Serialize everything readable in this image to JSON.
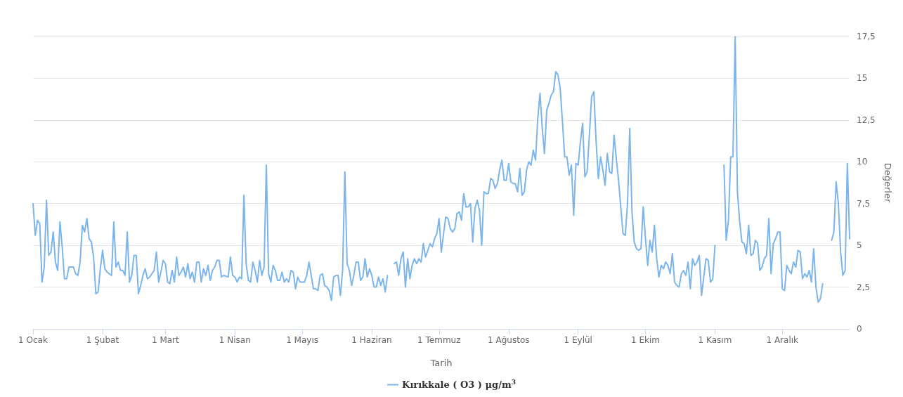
{
  "chart_data": {
    "type": "line",
    "xlabel": "Tarih",
    "ylabel": "Değerler",
    "legend": "bottom",
    "grid": "y",
    "marker": "none",
    "line_style": "solid",
    "xlim": [
      "--01-01",
      "--12-31"
    ],
    "xticks": [
      {
        "value": "--01-01",
        "label": "1 Ocak"
      },
      {
        "value": "--02-01",
        "label": "1 Şubat"
      },
      {
        "value": "--03-01",
        "label": "1 Mart"
      },
      {
        "value": "--04-01",
        "label": "1 Nisan"
      },
      {
        "value": "--05-01",
        "label": "1 Mayıs"
      },
      {
        "value": "--06-01",
        "label": "1 Haziran"
      },
      {
        "value": "--07-01",
        "label": "1 Temmuz"
      },
      {
        "value": "--08-01",
        "label": "1 Ağustos"
      },
      {
        "value": "--09-01",
        "label": "1 Eylül"
      },
      {
        "value": "--10-01",
        "label": "1 Ekim"
      },
      {
        "value": "--11-01",
        "label": "1 Kasım"
      },
      {
        "value": "--12-01",
        "label": "1 Aralık"
      }
    ],
    "ylim": [
      0,
      17.5
    ],
    "yticks": [
      0,
      {
        "value": 2.5,
        "label": "2,5"
      },
      5,
      {
        "value": 7.5,
        "label": "7,5"
      },
      10,
      {
        "value": 12.5,
        "label": "12,5"
      },
      15,
      {
        "value": 17.5,
        "label": "17,5"
      }
    ],
    "x": [
      "--01-01",
      "--01-02",
      "--01-03",
      "--01-04",
      "--01-05",
      "--01-06",
      "--01-07",
      "--01-08",
      "--01-09",
      "--01-10",
      "--01-11",
      "--01-12",
      "--01-13",
      "--01-14",
      "--01-15",
      "--01-16",
      "--01-17",
      "--01-19",
      "--01-20",
      "--01-21",
      "--01-22",
      "--01-23",
      "--01-24",
      "--01-25",
      "--01-26",
      "--01-27",
      "--01-28",
      "--01-29",
      "--01-30",
      "--01-31",
      "--02-01",
      "--02-02",
      "--02-03",
      "--02-05",
      "--02-06",
      "--02-07",
      "--02-08",
      "--02-09",
      "--02-10",
      "--02-11",
      "--02-12",
      "--02-13",
      "--02-14",
      "--02-15",
      "--02-16",
      "--02-17",
      "--02-18",
      "--02-19",
      "--02-20",
      "--02-21",
      "--02-22",
      "--02-24",
      "--02-25",
      "--02-26",
      "--02-27",
      "--02-28",
      "--03-01",
      "--03-02",
      "--03-03",
      "--03-04",
      "--03-05",
      "--03-06",
      "--03-07",
      "--03-08",
      "--03-09",
      "--03-10",
      "--03-11",
      "--03-12",
      "--03-13",
      "--03-14",
      "--03-15",
      "--03-16",
      "--03-17",
      "--03-18",
      "--03-19",
      "--03-20",
      "--03-21",
      "--03-22",
      "--03-23",
      "--03-24",
      "--03-25",
      "--03-26",
      "--03-27",
      "--03-29",
      "--03-30",
      "--03-31",
      "--04-01",
      "--04-02",
      "--04-03",
      "--04-04",
      "--04-05",
      "--04-06",
      "--04-07",
      "--04-08",
      "--04-09",
      "--04-10",
      "--04-11",
      "--04-12",
      "--04-13",
      "--04-14",
      "--04-15",
      "--04-16",
      "--04-17",
      "--04-18",
      "--04-19",
      "--04-20",
      "--04-21",
      "--04-22",
      "--04-23",
      "--04-24",
      "--04-25",
      "--04-26",
      "--04-27",
      "--04-28",
      "--04-29",
      "--04-30",
      "--05-01",
      "--05-02",
      "--05-03",
      "--05-04",
      "--05-05",
      "--05-06",
      "--05-07",
      "--05-08",
      "--05-09",
      "--05-10",
      "--05-11",
      "--05-12",
      "--05-13",
      "--05-14",
      "--05-15",
      "--05-16",
      "--05-17",
      "--05-18",
      "--05-19",
      "--05-20",
      "--05-21",
      "--05-22",
      "--05-23",
      "--05-24",
      "--05-25",
      "--05-26",
      "--05-27",
      "--05-28",
      "--05-29",
      "--05-30",
      "--05-31",
      "--06-01",
      "--06-02",
      "--06-03",
      "--06-04",
      "--06-05",
      "--06-06",
      "--06-07",
      "--06-08",
      "--06-09",
      "--06-11",
      "--06-12",
      "--06-13",
      "--06-14",
      "--06-15",
      "--06-16",
      "--06-17",
      "--06-18",
      "--06-19",
      "--06-20",
      "--06-21",
      "--06-22",
      "--06-23",
      "--06-24",
      "--06-25",
      "--06-26",
      "--06-27",
      "--06-28",
      "--06-29",
      "--06-30",
      "--07-01",
      "--07-02",
      "--07-03",
      "--07-04",
      "--07-05",
      "--07-06",
      "--07-07",
      "--07-08",
      "--07-09",
      "--07-10",
      "--07-11",
      "--07-12",
      "--07-13",
      "--07-14",
      "--07-15",
      "--07-16",
      "--07-17",
      "--07-18",
      "--07-19",
      "--07-20",
      "--07-21",
      "--07-22",
      "--07-23",
      "--07-24",
      "--07-25",
      "--07-26",
      "--07-27",
      "--07-28",
      "--07-29",
      "--07-30",
      "--07-31",
      "--08-01",
      "--08-02",
      "--08-03",
      "--08-04",
      "--08-05",
      "--08-06",
      "--08-07",
      "--08-08",
      "--08-09",
      "--08-10",
      "--08-11",
      "--08-12",
      "--08-13",
      "--08-14",
      "--08-15",
      "--08-16",
      "--08-17",
      "--08-18",
      "--08-19",
      "--08-20",
      "--08-21",
      "--08-22",
      "--08-23",
      "--08-24",
      "--08-25",
      "--08-26",
      "--08-27",
      "--08-28",
      "--08-29",
      "--08-30",
      "--08-31",
      "--09-01",
      "--09-02",
      "--09-03",
      "--09-04",
      "--09-05",
      "--09-06",
      "--09-07",
      "--09-08",
      "--09-09",
      "--09-10",
      "--09-11",
      "--09-12",
      "--09-13",
      "--09-14",
      "--09-15",
      "--09-16",
      "--09-17",
      "--09-18",
      "--09-19",
      "--09-20",
      "--09-21",
      "--09-22",
      "--09-23",
      "--09-24",
      "--09-25",
      "--09-26",
      "--09-27",
      "--09-28",
      "--09-29",
      "--09-30",
      "--10-01",
      "--10-02",
      "--10-03",
      "--10-04",
      "--10-05",
      "--10-06",
      "--10-07",
      "--10-08",
      "--10-09",
      "--10-10",
      "--10-11",
      "--10-12",
      "--10-13",
      "--10-14",
      "--10-15",
      "--10-16",
      "--10-17",
      "--10-18",
      "--10-19",
      "--10-20",
      "--10-21",
      "--10-22",
      "--10-23",
      "--10-24",
      "--10-25",
      "--10-26",
      "--10-27",
      "--10-28",
      "--10-29",
      "--10-30",
      "--10-31",
      "--11-01",
      "--11-02",
      "--11-05",
      "--11-06",
      "--11-07",
      "--11-08",
      "--11-09",
      "--11-10",
      "--11-11",
      "--11-12",
      "--11-13",
      "--11-14",
      "--11-15",
      "--11-16",
      "--11-17",
      "--11-18",
      "--11-19",
      "--11-20",
      "--11-21",
      "--11-22",
      "--11-23",
      "--11-24",
      "--11-25",
      "--11-26",
      "--11-27",
      "--11-28",
      "--11-29",
      "--11-30",
      "--12-01",
      "--12-02",
      "--12-03",
      "--12-04",
      "--12-05",
      "--12-06",
      "--12-07",
      "--12-08",
      "--12-09",
      "--12-10",
      "--12-11",
      "--12-12",
      "--12-13",
      "--12-14",
      "--12-15",
      "--12-16",
      "--12-17",
      "--12-18",
      "--12-19",
      "--12-20",
      "--12-23",
      "--12-24",
      "--12-25",
      "--12-26",
      "--12-27",
      "--12-28",
      "--12-29",
      "--12-30",
      "--12-31"
    ],
    "series": [
      {
        "name": "Kırıkkale ( O3 ) μg/m$^{3}$",
        "color": "#7cb5ec",
        "values": [
          7.5,
          5.6,
          6.5,
          6.3,
          2.8,
          3.7,
          7.7,
          4.4,
          4.6,
          5.8,
          4.0,
          3.5,
          6.4,
          4.9,
          3.0,
          3.0,
          3.7,
          3.7,
          3.3,
          3.2,
          4.0,
          6.2,
          5.8,
          6.6,
          5.4,
          5.2,
          4.3,
          2.1,
          2.2,
          3.6,
          4.7,
          3.6,
          3.4,
          3.2,
          6.4,
          3.7,
          4.0,
          3.5,
          3.5,
          3.2,
          5.8,
          2.8,
          3.2,
          4.4,
          4.4,
          2.1,
          2.6,
          3.2,
          3.6,
          3.0,
          3.1,
          3.5,
          4.6,
          2.8,
          3.4,
          4.1,
          3.9,
          2.8,
          2.7,
          3.5,
          2.8,
          4.3,
          3.2,
          3.4,
          3.7,
          3.1,
          3.9,
          3.0,
          3.4,
          2.8,
          4.0,
          4.0,
          2.8,
          3.6,
          3.2,
          3.8,
          2.9,
          3.5,
          3.7,
          4.1,
          4.1,
          3.1,
          3.2,
          3.1,
          4.3,
          3.2,
          3.1,
          2.8,
          3.1,
          3.0,
          8.0,
          3.9,
          2.9,
          2.8,
          4.0,
          3.5,
          2.8,
          4.1,
          3.2,
          3.7,
          9.8,
          3.3,
          2.8,
          3.8,
          3.5,
          2.9,
          2.9,
          3.4,
          2.8,
          3.0,
          2.8,
          3.5,
          3.4,
          2.4,
          3.1,
          2.8,
          2.8,
          2.8,
          3.2,
          4.0,
          3.2,
          2.4,
          2.4,
          2.3,
          3.2,
          3.3,
          2.6,
          2.5,
          2.3,
          1.7,
          3.1,
          3.2,
          3.2,
          2.0,
          3.5,
          9.4,
          3.9,
          3.5,
          2.6,
          3.2,
          4.0,
          4.0,
          2.9,
          3.1,
          4.2,
          3.1,
          3.6,
          3.2,
          2.5,
          2.5,
          3.1,
          2.6,
          3.0,
          2.2,
          3.2,
          null,
          3.9,
          4.0,
          3.2,
          4.2,
          4.6,
          2.5,
          4.2,
          3.0,
          3.8,
          4.2,
          3.9,
          4.2,
          4.0,
          5.1,
          4.3,
          4.7,
          5.1,
          4.9,
          5.4,
          5.7,
          6.6,
          4.6,
          5.7,
          6.7,
          6.6,
          6.0,
          5.8,
          6.0,
          6.9,
          7.0,
          6.5,
          8.1,
          7.3,
          7.3,
          7.5,
          5.2,
          7.2,
          7.7,
          7.1,
          5.0,
          8.2,
          8.1,
          8.1,
          9.0,
          8.9,
          8.4,
          8.7,
          9.5,
          10.1,
          8.9,
          8.9,
          9.9,
          8.8,
          8.7,
          8.7,
          8.2,
          9.6,
          8.0,
          8.2,
          9.5,
          10.0,
          9.8,
          10.7,
          10.1,
          12.6,
          14.1,
          12.0,
          10.5,
          13.1,
          13.5,
          14.0,
          14.2,
          15.4,
          15.2,
          14.4,
          12.4,
          10.3,
          10.3,
          9.2,
          9.8,
          6.8,
          9.9,
          9.8,
          11.2,
          12.3,
          9.1,
          9.4,
          11.6,
          13.9,
          14.2,
          11.2,
          9.0,
          10.3,
          9.5,
          8.6,
          10.5,
          9.4,
          9.3,
          11.6,
          10.2,
          8.9,
          7.3,
          5.7,
          5.6,
          7.5,
          12.0,
          7.0,
          5.2,
          4.8,
          4.7,
          4.8,
          7.3,
          5.4,
          3.8,
          5.3,
          4.6,
          6.2,
          4.2,
          3.1,
          3.8,
          3.6,
          4.0,
          3.8,
          3.3,
          4.5,
          2.8,
          2.6,
          2.5,
          3.3,
          3.5,
          3.2,
          4.0,
          2.4,
          4.2,
          3.8,
          4.0,
          4.4,
          2.0,
          3.1,
          4.2,
          4.1,
          2.8,
          3.0,
          5.0,
          null,
          9.8,
          5.3,
          6.5,
          10.3,
          10.3,
          17.5,
          8.2,
          6.4,
          5.2,
          5.1,
          4.5,
          6.2,
          4.4,
          4.5,
          5.3,
          5.1,
          3.5,
          3.7,
          4.2,
          4.4,
          6.6,
          3.3,
          5.1,
          5.4,
          5.8,
          5.8,
          2.4,
          2.3,
          3.8,
          3.5,
          3.3,
          4.0,
          3.7,
          4.7,
          4.6,
          3.0,
          3.3,
          3.1,
          3.5,
          2.8,
          4.8,
          2.5,
          1.6,
          1.8,
          2.7,
          null,
          5.3,
          5.8,
          8.8,
          7.5,
          4.6,
          3.2,
          3.5,
          9.9,
          5.4
        ]
      }
    ]
  }
}
